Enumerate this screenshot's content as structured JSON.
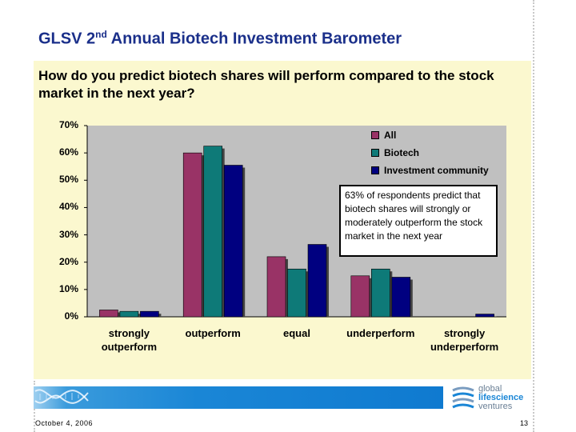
{
  "slide": {
    "title_prefix": "GLSV 2",
    "title_sup": "nd",
    "title_suffix": " Annual Biotech Investment Barometer",
    "question": "How do you predict biotech shares will perform compared to the stock market in the next year?",
    "annotation": "63% of respondents predict that biotech shares will strongly or moderately outperform the stock market in the next year",
    "date": "October 4, 2006",
    "page_number": "13"
  },
  "logo": {
    "line1": "global",
    "line2": "lifescience",
    "line3": "ventures"
  },
  "colors": {
    "all": "#993366",
    "biotech": "#0e7a78",
    "investment_community": "#000080",
    "plot_background": "#c0c0c0",
    "panel_background": "#fbf8cf",
    "title": "#1a2f8a"
  },
  "chart_data": {
    "type": "bar",
    "categories": [
      "strongly outperform",
      "outperform",
      "equal",
      "underperform",
      "strongly underperform"
    ],
    "category_lines": [
      [
        "strongly",
        "outperform"
      ],
      [
        "outperform"
      ],
      [
        "equal"
      ],
      [
        "underperform"
      ],
      [
        "strongly",
        "underperform"
      ]
    ],
    "series": [
      {
        "name": "All",
        "values": [
          2.5,
          60,
          22,
          15,
          0
        ]
      },
      {
        "name": "Biotech",
        "values": [
          2,
          62.5,
          17.5,
          17.5,
          0
        ]
      },
      {
        "name": "Investment community",
        "values": [
          2,
          55.5,
          26.5,
          14.5,
          1
        ]
      }
    ],
    "yticks": [
      "0%",
      "10%",
      "20%",
      "30%",
      "40%",
      "50%",
      "60%",
      "70%"
    ],
    "ylim": [
      0,
      70
    ],
    "grid": false,
    "legend_position": "top-right",
    "title": "",
    "xlabel": "",
    "ylabel": ""
  }
}
